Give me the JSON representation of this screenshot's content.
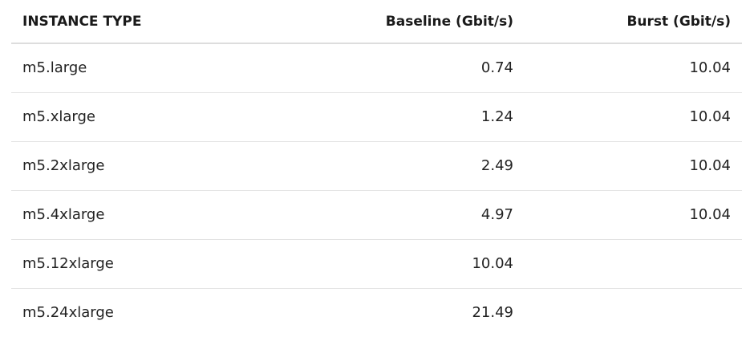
{
  "table": {
    "headers": [
      "INSTANCE TYPE",
      "Baseline (Gbit/s)",
      "Burst (Gbit/s)"
    ],
    "rows": [
      [
        "m5.large",
        "0.74",
        "10.04"
      ],
      [
        "m5.xlarge",
        "1.24",
        "10.04"
      ],
      [
        "m5.2xlarge",
        "2.49",
        "10.04"
      ],
      [
        "m5.4xlarge",
        "4.97",
        "10.04"
      ],
      [
        "m5.12xlarge",
        "10.04",
        ""
      ],
      [
        "m5.24xlarge",
        "21.49",
        ""
      ]
    ]
  }
}
